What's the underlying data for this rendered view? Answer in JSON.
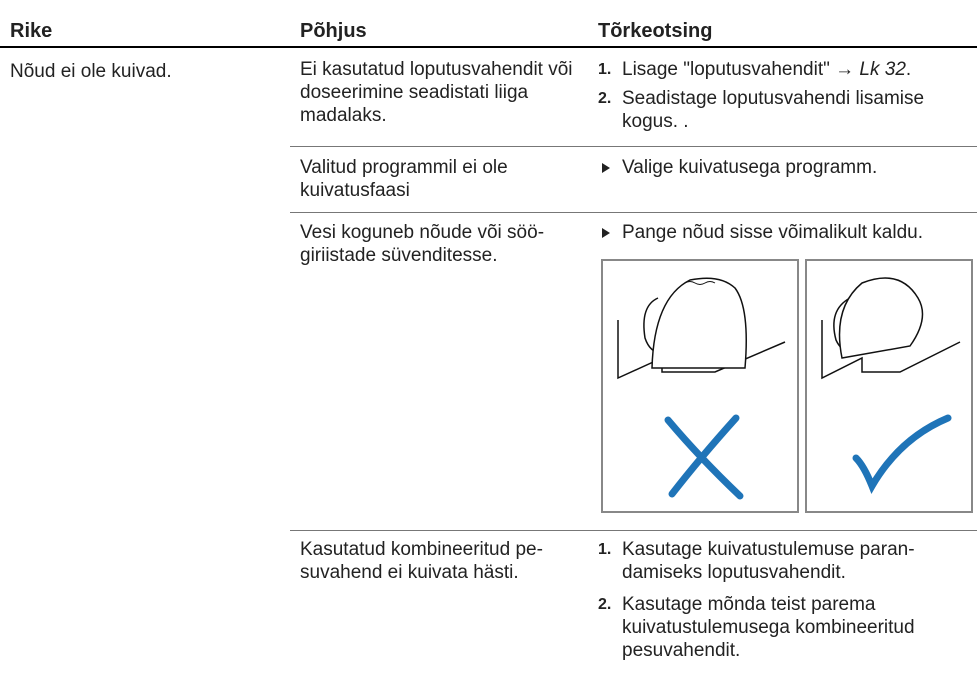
{
  "table": {
    "headers": [
      "Rike",
      "Põhjus",
      "Tõrkeotsing"
    ],
    "fault": "Nõud ei ole kuivad.",
    "rows": [
      {
        "cause": "Ei kasutatud loputusvahendit või doseerimine seadistati liiga madalaks.",
        "steps": [
          {
            "number": "1.",
            "text": "Lisage \"loputusvahendit\" → ",
            "ref": "Lk 32",
            "suffix": "."
          },
          {
            "number": "2.",
            "text": "Seadistage loputusvahendi lisamise kogus. ."
          }
        ]
      },
      {
        "cause": "Valitud programmil ei ole kuivatusfaasi",
        "bullet": "Valige kuivatusega programm."
      },
      {
        "cause": "Vesi koguneb nõude või söö­giriistade süvenditesse.",
        "bullet": "Pange nõud sisse võimalikult kaldu."
      },
      {
        "cause": "Kasutatud kombineeritud pe­suvahend ei kuivata hästi.",
        "steps": [
          {
            "number": "1.",
            "text": "Kasutage kuivatustulemuse paran­damiseks loputusvahendit."
          },
          {
            "number": "2.",
            "text": "Kasutage mõnda teist parema kuivatustulemusega kombineeritud pesuvahendit."
          }
        ]
      }
    ]
  }
}
